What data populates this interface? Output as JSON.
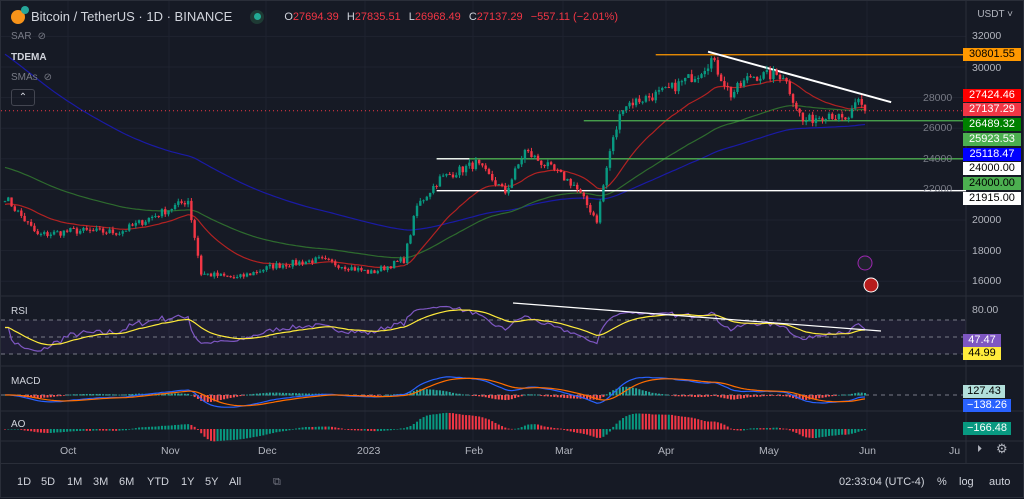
{
  "header": {
    "symbol": "Bitcoin / TetherUS · 1D · BINANCE",
    "o_label": "O",
    "o": "27694.39",
    "h_label": "H",
    "h": "27835.51",
    "l_label": "L",
    "l": "26968.49",
    "c_label": "C",
    "c": "27137.29",
    "change": "−557.11 (−2.01%)"
  },
  "indicators": [
    {
      "name": "SAR",
      "hidden": true
    },
    {
      "name": "TDEMA",
      "hidden": false
    },
    {
      "name": "SMAs",
      "hidden": true
    }
  ],
  "currency": "USDT",
  "price_labels": [
    {
      "value": "30801.55",
      "bg": "#ff9800",
      "fg": "#000000"
    },
    {
      "value": "27424.46",
      "bg": "#ff0000",
      "fg": "#ffffff"
    },
    {
      "value": "27137.29",
      "bg": "#f23645",
      "fg": "#ffffff"
    },
    {
      "value": "26489.32",
      "bg": "#008000",
      "fg": "#ffffff"
    },
    {
      "value": "25923.53",
      "bg": "#4caf50",
      "fg": "#ffffff"
    },
    {
      "value": "25118.47",
      "bg": "#0000ff",
      "fg": "#ffffff"
    },
    {
      "value": "24000.00",
      "bg": "#ffffff",
      "fg": "#000000"
    },
    {
      "value": "24000.00",
      "bg": "#4caf50",
      "fg": "#000000"
    },
    {
      "value": "21915.00",
      "bg": "#ffffff",
      "fg": "#000000"
    }
  ],
  "panes": {
    "rsi": {
      "label": "RSI",
      "axis": "80.00",
      "rsi": "47.47",
      "ma": "44.99"
    },
    "macd": {
      "label": "MACD",
      "macd": "127.43",
      "signal": "−138.26"
    },
    "ao": {
      "label": "AO",
      "value": "−166.48"
    }
  },
  "time_axis": [
    "Oct",
    "Nov",
    "Dec",
    "2023",
    "Feb",
    "Mar",
    "Apr",
    "May",
    "Jun",
    "Ju"
  ],
  "bottom": {
    "ranges": [
      "1D",
      "5D",
      "1M",
      "3M",
      "6M",
      "YTD",
      "1Y",
      "5Y",
      "All"
    ],
    "clock": "02:33:04 (UTC-4)",
    "percent": "%",
    "log": "log",
    "auto": "auto"
  },
  "chart_data": {
    "type": "candlestick",
    "symbol": "BTCUSDT",
    "interval": "1D",
    "yticks": [
      32000,
      30000,
      28000,
      26000,
      24000,
      22000,
      20000,
      18000,
      16000
    ],
    "ylim": [
      15200,
      32800
    ],
    "close_keypoints": [
      [
        "2022-09-10",
        21500
      ],
      [
        "2022-09-20",
        19000
      ],
      [
        "2022-10-01",
        19300
      ],
      [
        "2022-10-15",
        19200
      ],
      [
        "2022-10-25",
        20200
      ],
      [
        "2022-11-05",
        21300
      ],
      [
        "2022-11-09",
        16500
      ],
      [
        "2022-11-20",
        16200
      ],
      [
        "2022-12-01",
        17000
      ],
      [
        "2022-12-15",
        17400
      ],
      [
        "2022-12-31",
        16550
      ],
      [
        "2023-01-10",
        17400
      ],
      [
        "2023-01-14",
        20900
      ],
      [
        "2023-01-21",
        22700
      ],
      [
        "2023-02-01",
        23700
      ],
      [
        "2023-02-10",
        21800
      ],
      [
        "2023-02-16",
        24500
      ],
      [
        "2023-02-25",
        23200
      ],
      [
        "2023-03-03",
        22300
      ],
      [
        "2023-03-10",
        20000
      ],
      [
        "2023-03-14",
        24500
      ],
      [
        "2023-03-18",
        27500
      ],
      [
        "2023-03-31",
        28400
      ],
      [
        "2023-04-10",
        29600
      ],
      [
        "2023-04-14",
        30500
      ],
      [
        "2023-04-20",
        28200
      ],
      [
        "2023-04-26",
        29400
      ],
      [
        "2023-05-06",
        29500
      ],
      [
        "2023-05-12",
        26400
      ],
      [
        "2023-05-20",
        27000
      ],
      [
        "2023-05-25",
        26400
      ],
      [
        "2023-05-29",
        27700
      ],
      [
        "2023-05-31",
        27137
      ]
    ],
    "horizontal_levels": [
      {
        "price": 30801.55,
        "color": "#ff9800",
        "from": "2023-03-28"
      },
      {
        "price": 26489.32,
        "color": "#4caf50",
        "from": "2023-03-06"
      },
      {
        "price": 24000,
        "color": "#4caf50",
        "from": "2023-01-20"
      },
      {
        "price": 21915,
        "color": "#ffffff",
        "from": "2023-01-20"
      },
      {
        "price": 24000,
        "color": "#ffffff",
        "from": "2023-01-20",
        "to": "2023-01-30"
      }
    ],
    "trendline": {
      "from": [
        "2023-04-13",
        31000
      ],
      "to": [
        "2023-06-08",
        27700
      ],
      "color": "#ffffff"
    }
  }
}
